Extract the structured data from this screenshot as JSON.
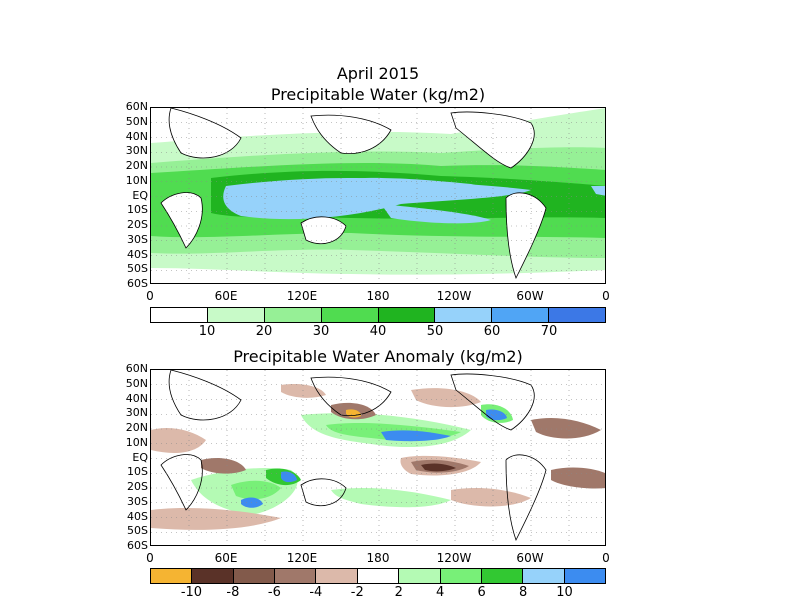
{
  "top_panel": {
    "title_line1": "April 2015",
    "title_line2": "Precipitable Water (kg/m2)",
    "lat_labels": [
      "60N",
      "50N",
      "40N",
      "30N",
      "20N",
      "10N",
      "EQ",
      "10S",
      "20S",
      "30S",
      "40S",
      "50S",
      "60S"
    ],
    "lon_labels": [
      "0",
      "60E",
      "120E",
      "180",
      "120W",
      "60W",
      "0"
    ],
    "colorbar": {
      "colors": [
        "#ffffff",
        "#c8fac8",
        "#96f096",
        "#50dc50",
        "#20b420",
        "#96d2fa",
        "#50a5f5",
        "#3c78e6"
      ],
      "labels": [
        "10",
        "20",
        "30",
        "40",
        "50",
        "60",
        "70"
      ]
    }
  },
  "bottom_panel": {
    "title": "Precipitable Water Anomaly (kg/m2)",
    "lat_labels": [
      "60N",
      "50N",
      "40N",
      "30N",
      "20N",
      "10N",
      "EQ",
      "10S",
      "20S",
      "30S",
      "40S",
      "50S",
      "60S"
    ],
    "lon_labels": [
      "0",
      "60E",
      "120E",
      "180",
      "120W",
      "60W",
      "0"
    ],
    "colorbar": {
      "colors": [
        "#f5b432",
        "#5a3228",
        "#825a4b",
        "#a0786a",
        "#dcb9aa",
        "#ffffff",
        "#b4fab4",
        "#78f078",
        "#32c832",
        "#96d2fa",
        "#3c8cf0"
      ],
      "labels": [
        "-10",
        "-8",
        "-6",
        "-4",
        "-2",
        "2",
        "4",
        "6",
        "8",
        "10"
      ]
    }
  }
}
